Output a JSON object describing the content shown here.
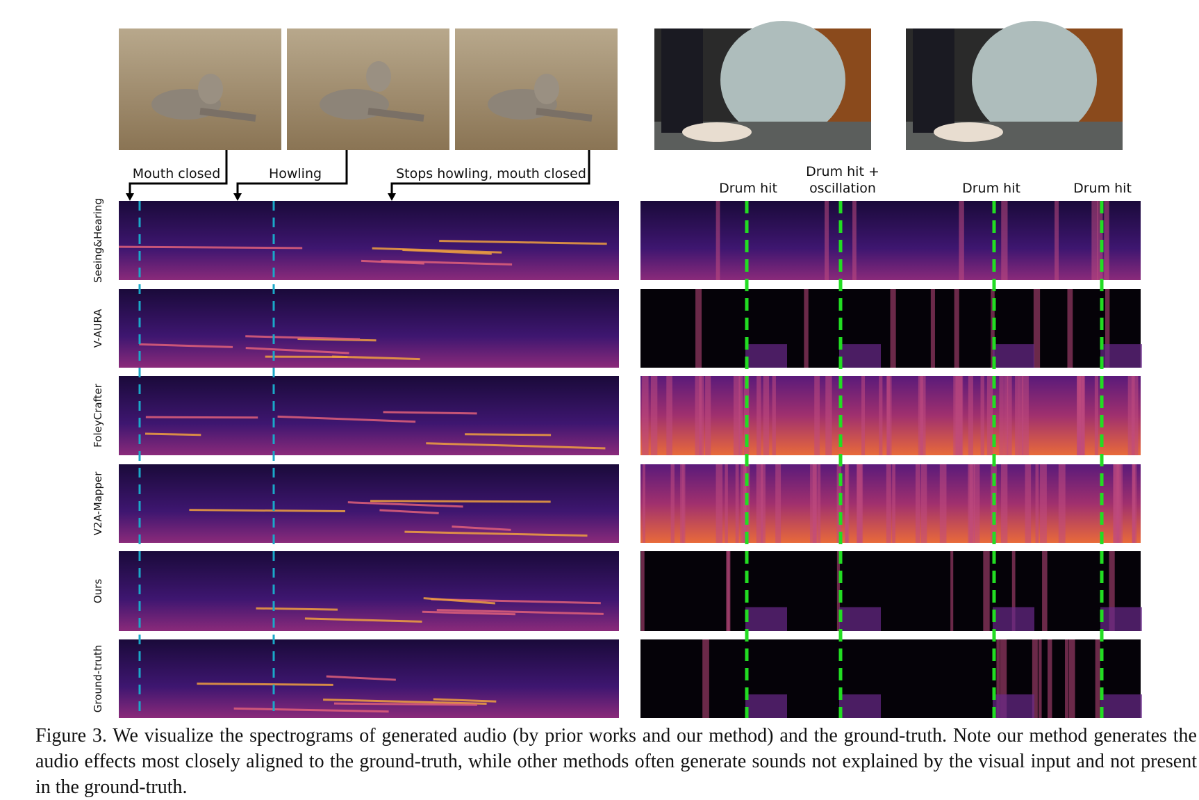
{
  "figure": {
    "annotations_left": [
      "Mouth closed",
      "Howling",
      "Stops howling, mouth closed"
    ],
    "annotations_right": [
      [
        "Drum hit"
      ],
      [
        "Drum hit +",
        "oscillation"
      ],
      [
        "Drum hit"
      ],
      [
        "Drum hit"
      ]
    ],
    "row_labels": [
      "Seeing&Hearing",
      "V-AURA",
      "FoleyCrafter",
      "V2A-Mapper",
      "Ours",
      "Ground-truth"
    ],
    "caption": "Figure 3. We visualize the spectrograms of generated audio (by prior works and our method) and the ground-truth. Note our method generates the audio effects most closely aligned to the ground-truth, while other methods often generate sounds not explained by the visual input and not present in the ground-truth."
  }
}
